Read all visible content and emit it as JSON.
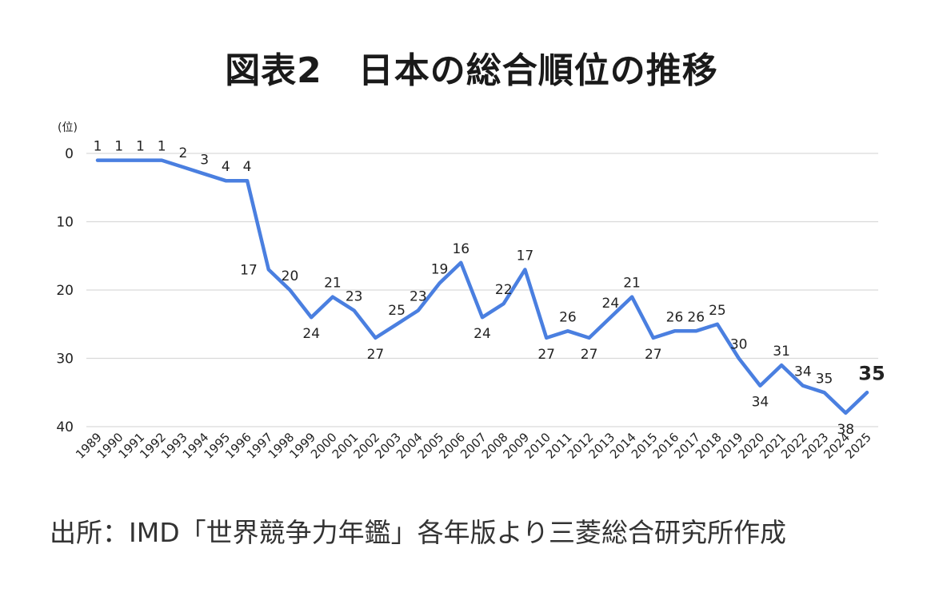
{
  "title": "図表2　日本の総合順位の推移",
  "source": "出所：IMD「世界競争力年鑑」各年版より三菱総合研究所作成",
  "chart_data": {
    "type": "line",
    "ylabel": "(位)",
    "ylim": [
      0,
      40
    ],
    "yticks": [
      0,
      10,
      20,
      30,
      40
    ],
    "y_inverted": true,
    "grid": true,
    "line_color": "#4a7fe0",
    "categories": [
      "1989",
      "1990",
      "1991",
      "1992",
      "1993",
      "1994",
      "1995",
      "1996",
      "1997",
      "1998",
      "1999",
      "2000",
      "2001",
      "2002",
      "2003",
      "2004",
      "2005",
      "2006",
      "2007",
      "2008",
      "2009",
      "2010",
      "2011",
      "2012",
      "2013",
      "2014",
      "2015",
      "2016",
      "2017",
      "2018",
      "2019",
      "2020",
      "2021",
      "2022",
      "2023",
      "2024",
      "2025"
    ],
    "series": [
      {
        "values": [
          1,
          1,
          1,
          1,
          2,
          3,
          4,
          4,
          17,
          20,
          24,
          21,
          23,
          27,
          25,
          23,
          19,
          16,
          24,
          22,
          17,
          27,
          26,
          27,
          24,
          21,
          27,
          26,
          26,
          25,
          30,
          34,
          31,
          34,
          35,
          38,
          35
        ]
      }
    ],
    "data_labels": [
      "1",
      "1",
      "1",
      "1",
      "2",
      "3",
      "4",
      "4",
      "17",
      "20",
      "24",
      "21",
      "23",
      "27",
      "25",
      "23",
      "19",
      "16",
      "24",
      "22",
      "17",
      "27",
      "26",
      "27",
      "24",
      "21",
      "27",
      "26",
      "26",
      "25",
      "30",
      "34",
      "31",
      "34",
      "35",
      "38",
      "35"
    ],
    "label_below_indices": [
      10,
      13,
      18,
      21,
      23,
      26,
      31,
      35
    ],
    "label_left_indices": [
      8
    ],
    "highlight_index": 36
  }
}
